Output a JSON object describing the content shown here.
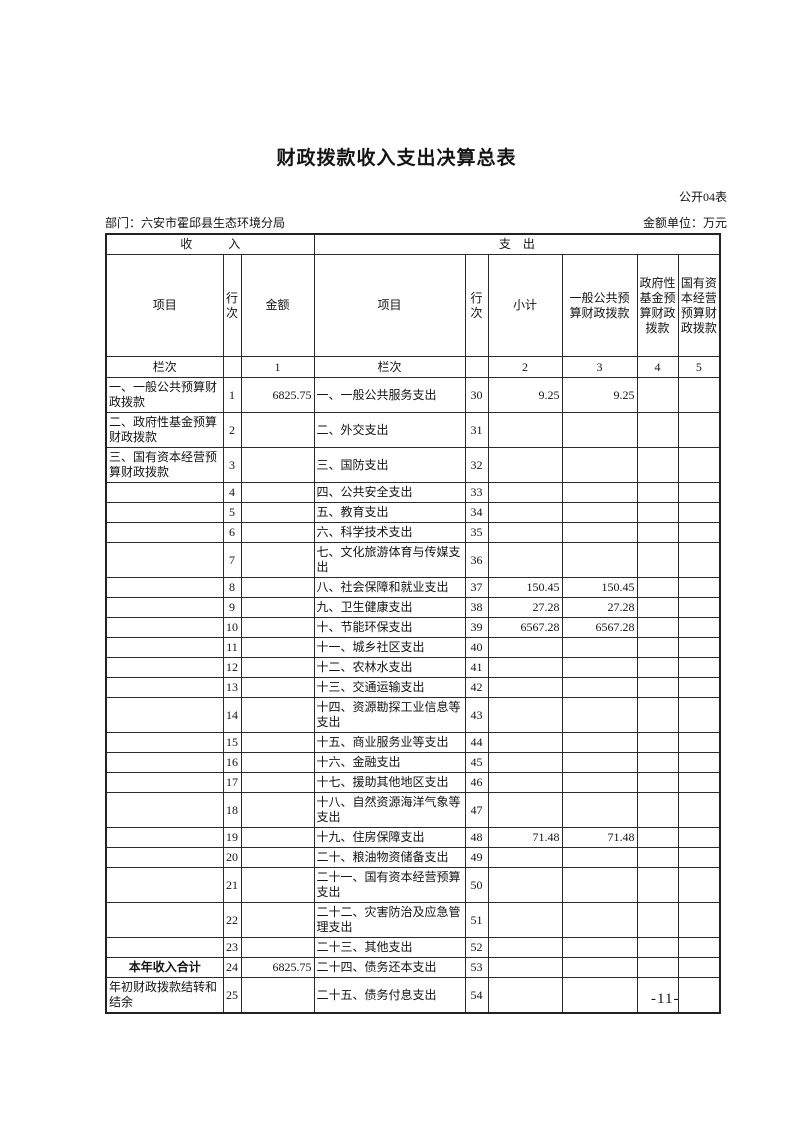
{
  "header": {
    "title": "财政拨款收入支出决算总表",
    "table_tag": "公开04表",
    "department": "部门：六安市霍邱县生态环境分局",
    "unit_note": "金额单位：万元"
  },
  "table": {
    "section_headers": {
      "income": "收　　　入",
      "expenditure": "支　出"
    },
    "columns": [
      "项目",
      "行次",
      "金额",
      "项目",
      "行次",
      "小计",
      "一般公共预算财政拨款",
      "政府性基金预算财政拨款",
      "国有资本经营预算财政拨款"
    ],
    "lane_row": [
      "栏次",
      "",
      "1",
      "栏次",
      "",
      "2",
      "3",
      "4",
      "5"
    ],
    "rows": [
      [
        "一、一般公共预算财政拨款",
        "1",
        "6825.75",
        "一、一般公共服务支出",
        "30",
        "9.25",
        "9.25",
        "",
        ""
      ],
      [
        "二、政府性基金预算财政拨款",
        "2",
        "",
        "二、外交支出",
        "31",
        "",
        "",
        "",
        ""
      ],
      [
        "三、国有资本经营预算财政拨款",
        "3",
        "",
        "三、国防支出",
        "32",
        "",
        "",
        "",
        ""
      ],
      [
        "",
        "4",
        "",
        "四、公共安全支出",
        "33",
        "",
        "",
        "",
        ""
      ],
      [
        "",
        "5",
        "",
        "五、教育支出",
        "34",
        "",
        "",
        "",
        ""
      ],
      [
        "",
        "6",
        "",
        "六、科学技术支出",
        "35",
        "",
        "",
        "",
        ""
      ],
      [
        "",
        "7",
        "",
        "七、文化旅游体育与传媒支出",
        "36",
        "",
        "",
        "",
        ""
      ],
      [
        "",
        "8",
        "",
        "八、社会保障和就业支出",
        "37",
        "150.45",
        "150.45",
        "",
        ""
      ],
      [
        "",
        "9",
        "",
        "九、卫生健康支出",
        "38",
        "27.28",
        "27.28",
        "",
        ""
      ],
      [
        "",
        "10",
        "",
        "十、节能环保支出",
        "39",
        "6567.28",
        "6567.28",
        "",
        ""
      ],
      [
        "",
        "11",
        "",
        "十一、城乡社区支出",
        "40",
        "",
        "",
        "",
        ""
      ],
      [
        "",
        "12",
        "",
        "十二、农林水支出",
        "41",
        "",
        "",
        "",
        ""
      ],
      [
        "",
        "13",
        "",
        "十三、交通运输支出",
        "42",
        "",
        "",
        "",
        ""
      ],
      [
        "",
        "14",
        "",
        "十四、资源勘探工业信息等支出",
        "43",
        "",
        "",
        "",
        ""
      ],
      [
        "",
        "15",
        "",
        "十五、商业服务业等支出",
        "44",
        "",
        "",
        "",
        ""
      ],
      [
        "",
        "16",
        "",
        "十六、金融支出",
        "45",
        "",
        "",
        "",
        ""
      ],
      [
        "",
        "17",
        "",
        "十七、援助其他地区支出",
        "46",
        "",
        "",
        "",
        ""
      ],
      [
        "",
        "18",
        "",
        "十八、自然资源海洋气象等支出",
        "47",
        "",
        "",
        "",
        ""
      ],
      [
        "",
        "19",
        "",
        "十九、住房保障支出",
        "48",
        "71.48",
        "71.48",
        "",
        ""
      ],
      [
        "",
        "20",
        "",
        "二十、粮油物资储备支出",
        "49",
        "",
        "",
        "",
        ""
      ],
      [
        "",
        "21",
        "",
        "二十一、国有资本经营预算支出",
        "50",
        "",
        "",
        "",
        ""
      ],
      [
        "",
        "22",
        "",
        "二十二、灾害防治及应急管理支出",
        "51",
        "",
        "",
        "",
        ""
      ],
      [
        "",
        "23",
        "",
        "二十三、其他支出",
        "52",
        "",
        "",
        "",
        ""
      ],
      [
        "本年收入合计",
        "24",
        "6825.75",
        "二十四、债务还本支出",
        "53",
        "",
        "",
        "",
        ""
      ],
      [
        "年初财政拨款结转和结余",
        "25",
        "",
        "二十五、债务付息支出",
        "54",
        "",
        "",
        "",
        ""
      ]
    ]
  },
  "footer": {
    "page_number": "-11-"
  }
}
